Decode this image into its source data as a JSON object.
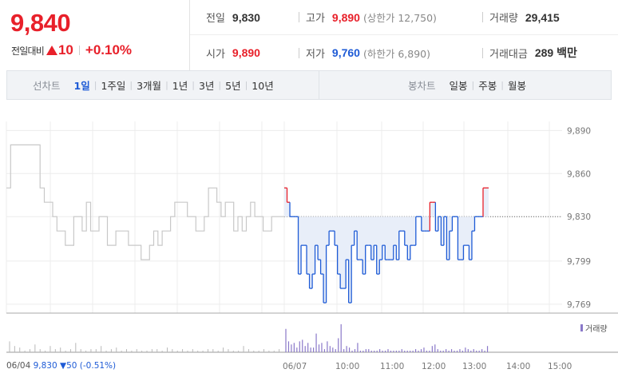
{
  "summary": {
    "current_price": "9,840",
    "change_label": "전일대비",
    "change_value": "10",
    "change_rate": "+0.10%",
    "prev_close_label": "전일",
    "prev_close": "9,830",
    "open_label": "시가",
    "open": "9,890",
    "high_label": "고가",
    "high": "9,890",
    "upper_limit": "(상한가 12,750)",
    "low_label": "저가",
    "low": "9,760",
    "lower_limit": "(하한가 6,890)",
    "volume_label": "거래량",
    "volume": "29,415",
    "amount_label": "거래대금",
    "amount": "289 백만"
  },
  "tabs": {
    "line_title": "선차트",
    "line_items": [
      "1일",
      "1주일",
      "3개월",
      "1년",
      "3년",
      "5년",
      "10년"
    ],
    "active_line": "1일",
    "candle_title": "봉차트",
    "candle_items": [
      "일봉",
      "주봉",
      "월봉"
    ]
  },
  "colors": {
    "up": "#e8202a",
    "down": "#1e5bd6",
    "prev_day_line": "#c8c8c8",
    "fill": "#e8eef9",
    "volume": "#8a78c9"
  },
  "chart_data": {
    "type": "line",
    "y_ticks": [
      9890,
      9860,
      9830,
      9799,
      9769
    ],
    "ylim": [
      9765,
      9893
    ],
    "baseline": 9830,
    "x_tick_labels": [
      "06/07",
      "10:00",
      "11:00",
      "12:00",
      "13:00",
      "14:00",
      "15:00"
    ],
    "volume_legend": "거래량",
    "prev_day_footnote_date": "06/04",
    "prev_day_footnote_price": "9,830",
    "prev_day_footnote_change": "▼50 (-0.51%)",
    "prev_day_series": [
      9850,
      9880,
      9880,
      9880,
      9880,
      9880,
      9880,
      9880,
      9850,
      9840,
      9840,
      9830,
      9820,
      9820,
      9810,
      9810,
      9830,
      9830,
      9820,
      9840,
      9820,
      9820,
      9830,
      9830,
      9810,
      9810,
      9820,
      9820,
      9820,
      9810,
      9810,
      9810,
      9800,
      9800,
      9810,
      9820,
      9810,
      9820,
      9820,
      9830,
      9840,
      9840,
      9840,
      9830,
      9830,
      9820,
      9820,
      9830,
      9850,
      9850,
      9840,
      9830,
      9840,
      9840,
      9820,
      9830,
      9820,
      9830,
      9840,
      9830,
      9830,
      9820,
      9820,
      9830,
      9830,
      9830,
      9830
    ],
    "today_series": [
      9850,
      9840,
      9830,
      9830,
      9830,
      9790,
      9810,
      9810,
      9790,
      9780,
      9790,
      9810,
      9800,
      9790,
      9770,
      9810,
      9820,
      9820,
      9810,
      9790,
      9780,
      9780,
      9800,
      9770,
      9810,
      9820,
      9800,
      9800,
      9790,
      9810,
      9810,
      9800,
      9810,
      9790,
      9800,
      9810,
      9800,
      9800,
      9800,
      9810,
      9800,
      9820,
      9820,
      9810,
      9800,
      9810,
      9810,
      9830,
      9830,
      9820,
      9820,
      9820,
      9840,
      9840,
      9820,
      9830,
      9810,
      9830,
      9800,
      9820,
      9830,
      9830,
      9800,
      9800,
      9810,
      9810,
      9800,
      9820,
      9830,
      9830,
      9830,
      9850,
      9850,
      9850
    ],
    "prev_day_volume": [
      0.35,
      0.2,
      0.15,
      0.05,
      0.1,
      0.25,
      0.1,
      0.05,
      0.2,
      0.1,
      0.15,
      0.05,
      0.1,
      0.3,
      0.1,
      0.05,
      0.1,
      0.1,
      0.2,
      0.05,
      0.1,
      0.15,
      0.05,
      0.1,
      0.05,
      0.1,
      0.05,
      0.05,
      0.1,
      0.1,
      0.05,
      0.15,
      0.1,
      0.05,
      0.1,
      0.05,
      0.1,
      0.05,
      0.05,
      0.1,
      0.1,
      0.05,
      0.15,
      0.1,
      0.05,
      0.05,
      0.2,
      0.1,
      0.05,
      0.05,
      0.1,
      0.05,
      0.05,
      0.1
    ],
    "today_volume": [
      0.75,
      0.35,
      0.25,
      0.3,
      0.15,
      0.35,
      0.4,
      0.2,
      0.3,
      0.15,
      0.15,
      0.6,
      0.25,
      0.3,
      0.1,
      0.35,
      0.2,
      0.15,
      0.1,
      0.45,
      0.9,
      0.1,
      0.2,
      0.15,
      0.05,
      0.1,
      0.3,
      0.05,
      0.05,
      0.1,
      0.1,
      0.05,
      0.05,
      0.05,
      0.1,
      0.05,
      0.05,
      0.1,
      0.05,
      0.05,
      0.05,
      0.05,
      0.1,
      0.05,
      0.05,
      0.05,
      0.05,
      0.1,
      0.05,
      0.1,
      0.15,
      0.05,
      0.05,
      0.2,
      0.25,
      0.1,
      0.05,
      0.05,
      0.1,
      0.05,
      0.1,
      0.05,
      0.05,
      0.1,
      0.05,
      0.15,
      0.1,
      0.05,
      0.1,
      0.05,
      0.05,
      0.1,
      0.05,
      0.2
    ]
  }
}
